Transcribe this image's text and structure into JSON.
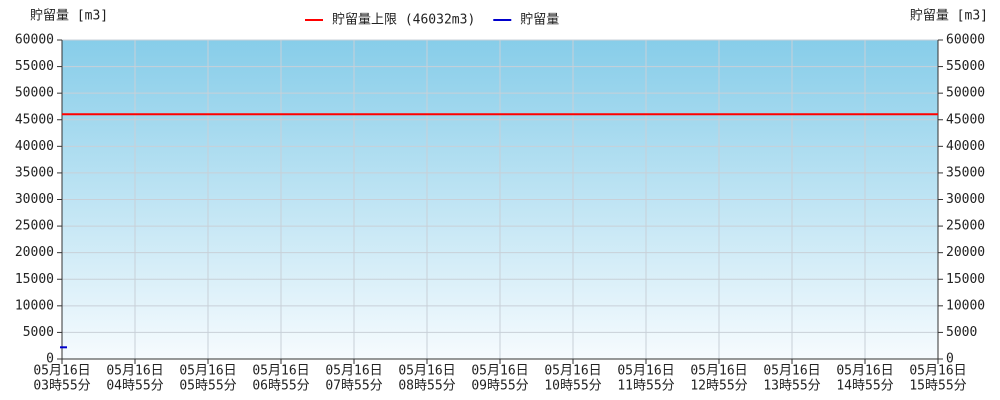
{
  "chart_data": {
    "type": "line",
    "ylabel": "貯留量 [m3]",
    "y2label": "貯留量 [m3]",
    "categories": [
      [
        "05月16日",
        "03時55分"
      ],
      [
        "05月16日",
        "04時55分"
      ],
      [
        "05月16日",
        "05時55分"
      ],
      [
        "05月16日",
        "06時55分"
      ],
      [
        "05月16日",
        "07時55分"
      ],
      [
        "05月16日",
        "08時55分"
      ],
      [
        "05月16日",
        "09時55分"
      ],
      [
        "05月16日",
        "10時55分"
      ],
      [
        "05月16日",
        "11時55分"
      ],
      [
        "05月16日",
        "12時55分"
      ],
      [
        "05月16日",
        "13時55分"
      ],
      [
        "05月16日",
        "14時55分"
      ],
      [
        "05月16日",
        "15時55分"
      ]
    ],
    "series": [
      {
        "name": "貯留量上限 (46032m3)",
        "color": "#ff0000",
        "values": [
          46032,
          46032,
          46032,
          46032,
          46032,
          46032,
          46032,
          46032,
          46032,
          46032,
          46032,
          46032,
          46032
        ]
      },
      {
        "name": "貯留量",
        "color": "#0000cc",
        "values": [
          2200,
          null,
          null,
          null,
          null,
          null,
          null,
          null,
          null,
          null,
          null,
          null,
          null
        ]
      }
    ],
    "ylim": [
      0,
      60000
    ],
    "yticks": [
      0,
      5000,
      10000,
      15000,
      20000,
      25000,
      30000,
      35000,
      40000,
      45000,
      50000,
      55000,
      60000
    ],
    "y2lim": [
      0,
      60000
    ],
    "y2ticks": [
      0,
      5000,
      10000,
      15000,
      20000,
      25000,
      30000,
      35000,
      40000,
      45000,
      50000,
      55000,
      60000
    ],
    "grid": true
  }
}
